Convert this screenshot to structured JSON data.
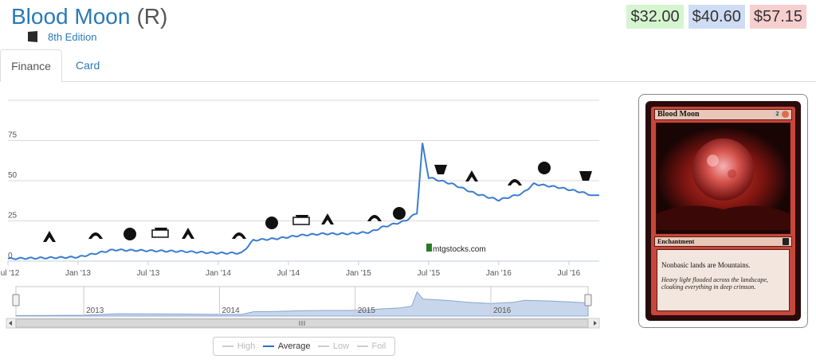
{
  "header": {
    "card_name": "Blood Moon",
    "rarity": "(R)",
    "edition": "8th Edition"
  },
  "prices": {
    "low": "$32.00",
    "average": "$40.60",
    "high": "$57.15"
  },
  "tabs": [
    {
      "label": "Finance"
    },
    {
      "label": "Card"
    }
  ],
  "chart_data": {
    "type": "line",
    "series": [
      {
        "name": "Average",
        "x": [
          "2012-07",
          "2012-10",
          "2013-01",
          "2013-02",
          "2013-04",
          "2013-07",
          "2013-10",
          "2014-01",
          "2014-03",
          "2014-04",
          "2014-06",
          "2014-08",
          "2014-10",
          "2014-12",
          "2015-02",
          "2015-03",
          "2015-04",
          "2015-05",
          "2015-06",
          "2015-06-15",
          "2015-07",
          "2015-09",
          "2015-11",
          "2016-01",
          "2016-03",
          "2016-04",
          "2016-06",
          "2016-08",
          "2016-09"
        ],
        "values": [
          1.5,
          2,
          2.5,
          4,
          7,
          6.5,
          6,
          5,
          5,
          13,
          14,
          16,
          17,
          17,
          18,
          21,
          23,
          25,
          30,
          73,
          52,
          48,
          42,
          38,
          42,
          48,
          46,
          43,
          41
        ]
      }
    ],
    "x_tick_labels": [
      "Jul '12",
      "Jan '13",
      "Jul '13",
      "Jan '14",
      "Jul '14",
      "Jan '15",
      "Jul '15",
      "Jan '16",
      "Jul '16"
    ],
    "y_tick_labels": [
      "0",
      "25",
      "50",
      "75"
    ],
    "ylim": [
      0,
      100
    ],
    "navigator_years": [
      "2013",
      "2014",
      "2015",
      "2016"
    ],
    "watermark": "mtgstocks.com",
    "grid": true,
    "legend_position": "bottom"
  },
  "legend": {
    "items": [
      {
        "label": "High",
        "active": false
      },
      {
        "label": "Average",
        "active": true
      },
      {
        "label": "Low",
        "active": false
      },
      {
        "label": "Foil",
        "active": false
      }
    ]
  },
  "card": {
    "name": "Blood Moon",
    "cost": "2",
    "type": "Enchantment",
    "rules": "Nonbasic lands are Mountains.",
    "flavor": "Heavy light flooded across the landscape, cloaking everything in deep crimson."
  },
  "colors": {
    "link": "#2a7ab8",
    "line": "#3b7dd0",
    "low": "#d5f5d0",
    "avg": "#cfdcf5",
    "high": "#f8cfcf"
  }
}
